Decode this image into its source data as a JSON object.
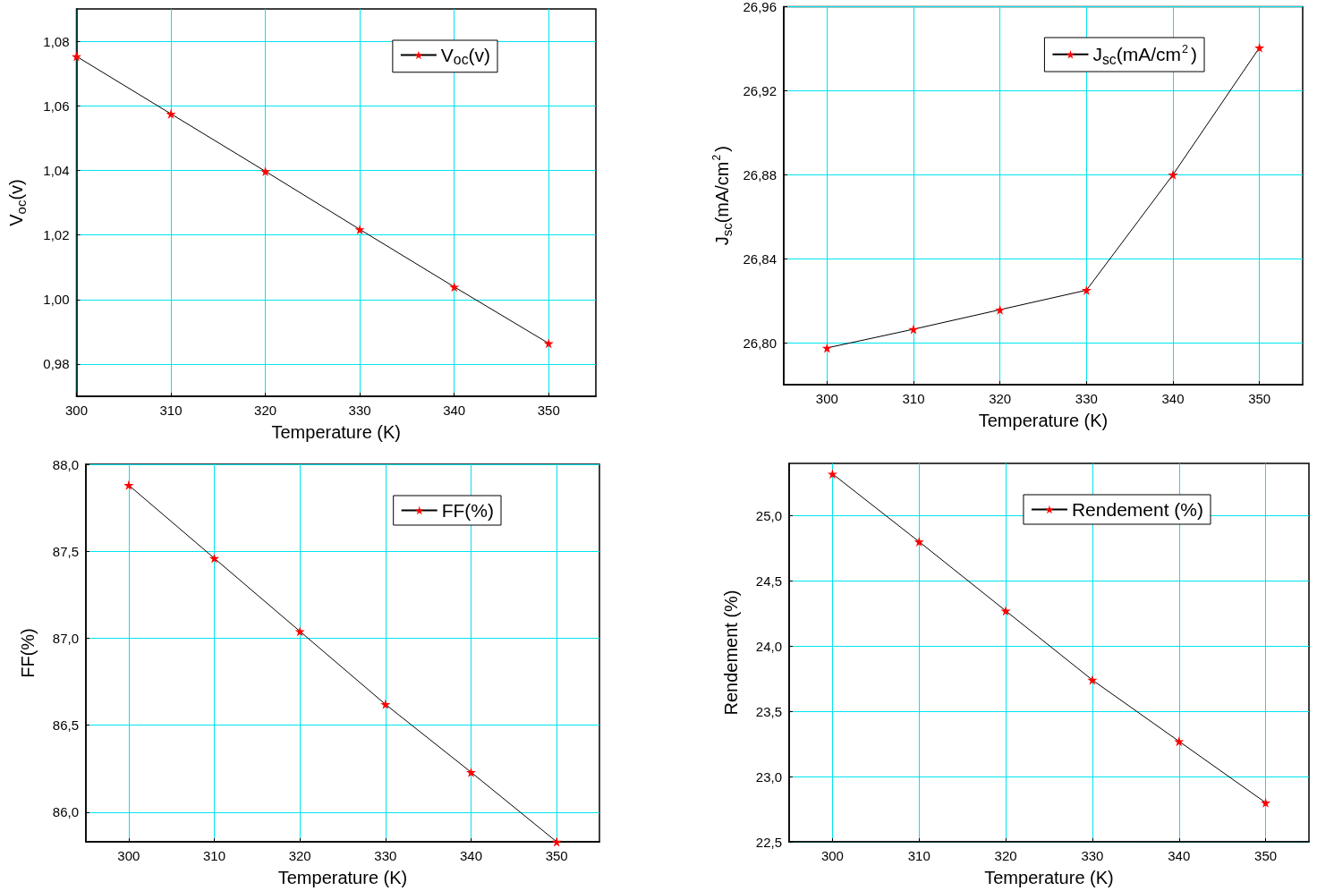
{
  "chart_data": [
    {
      "type": "line",
      "xlabel": "Temperature (K)",
      "ylabel": "V$_{oc}$(v)",
      "x": [
        300,
        310,
        320,
        330,
        340,
        350
      ],
      "series": [
        {
          "name": "V$_{oc}$(v)",
          "color": "#ff0000",
          "values": [
            1.0753,
            1.0575,
            1.0397,
            1.0217,
            1.0039,
            0.9864
          ]
        }
      ],
      "xlim": [
        300,
        355
      ],
      "xticks": [
        300,
        310,
        320,
        330,
        340,
        350
      ],
      "ylim": [
        0.97,
        1.09
      ],
      "yticks": [
        {
          "value": 0.98,
          "label": "0,98"
        },
        {
          "value": 1.0,
          "label": "1,00"
        },
        {
          "value": 1.02,
          "label": "1,02"
        },
        {
          "value": 1.04,
          "label": "1,04"
        },
        {
          "value": 1.06,
          "label": "1,06"
        },
        {
          "value": 1.08,
          "label": "1,08"
        }
      ],
      "grid": true,
      "legend": "top right",
      "marker": "star",
      "line_style": "solid"
    },
    {
      "type": "line",
      "xlabel": "Temperature (K)",
      "ylabel": "J$_{sc}$(mA/cm$^{2}$)",
      "x": [
        300,
        310,
        320,
        330,
        340,
        350
      ],
      "series": [
        {
          "name": "J$_{sc}$(mA/cm$^{2}$)",
          "color": "#ff0000",
          "values": [
            26.7975,
            26.8064,
            26.8157,
            26.825,
            26.88,
            26.9405
          ]
        }
      ],
      "xlim": [
        295,
        355
      ],
      "xticks": [
        300,
        310,
        320,
        330,
        340,
        350
      ],
      "ylim": [
        26.78,
        26.96
      ],
      "yticks": [
        {
          "value": 26.8,
          "label": "26,80"
        },
        {
          "value": 26.84,
          "label": "26,84"
        },
        {
          "value": 26.88,
          "label": "26,88"
        },
        {
          "value": 26.92,
          "label": "26,92"
        },
        {
          "value": 26.96,
          "label": "26,96"
        }
      ],
      "grid": true,
      "legend": "top right",
      "marker": "star",
      "line_style": "solid"
    },
    {
      "type": "line",
      "xlabel": "Temperature (K)",
      "ylabel": "FF(%)",
      "x": [
        300,
        310,
        320,
        330,
        340,
        350
      ],
      "series": [
        {
          "name": "FF(%)",
          "color": "#ff0000",
          "values": [
            87.88,
            87.46,
            87.04,
            86.62,
            86.23,
            85.83
          ]
        }
      ],
      "xlim": [
        295,
        355
      ],
      "xticks": [
        300,
        310,
        320,
        330,
        340,
        350
      ],
      "ylim": [
        85.83,
        88.0
      ],
      "yticks": [
        {
          "value": 86.0,
          "label": "86,0"
        },
        {
          "value": 86.5,
          "label": "86,5"
        },
        {
          "value": 87.0,
          "label": "87,0"
        },
        {
          "value": 87.5,
          "label": "87,5"
        },
        {
          "value": 88.0,
          "label": "88,0"
        }
      ],
      "grid": true,
      "legend": "top right",
      "marker": "star",
      "line_style": "solid"
    },
    {
      "type": "line",
      "xlabel": "Temperature (K)",
      "ylabel": "Rendement (%)",
      "x": [
        300,
        310,
        320,
        330,
        340,
        350
      ],
      "series": [
        {
          "name": "Rendement (%)",
          "color": "#ff0000",
          "values": [
            25.32,
            24.8,
            24.27,
            23.74,
            23.27,
            22.8
          ]
        }
      ],
      "xlim": [
        295,
        355
      ],
      "xticks": [
        300,
        310,
        320,
        330,
        340,
        350
      ],
      "ylim": [
        22.5,
        25.4
      ],
      "yticks": [
        {
          "value": 22.5,
          "label": "22,5"
        },
        {
          "value": 23.0,
          "label": "23,0"
        },
        {
          "value": 23.5,
          "label": "23,5"
        },
        {
          "value": 24.0,
          "label": "24,0"
        },
        {
          "value": 24.5,
          "label": "24,5"
        },
        {
          "value": 25.0,
          "label": "25,0"
        }
      ],
      "grid": true,
      "legend": "top right",
      "marker": "star",
      "line_style": "solid"
    }
  ]
}
